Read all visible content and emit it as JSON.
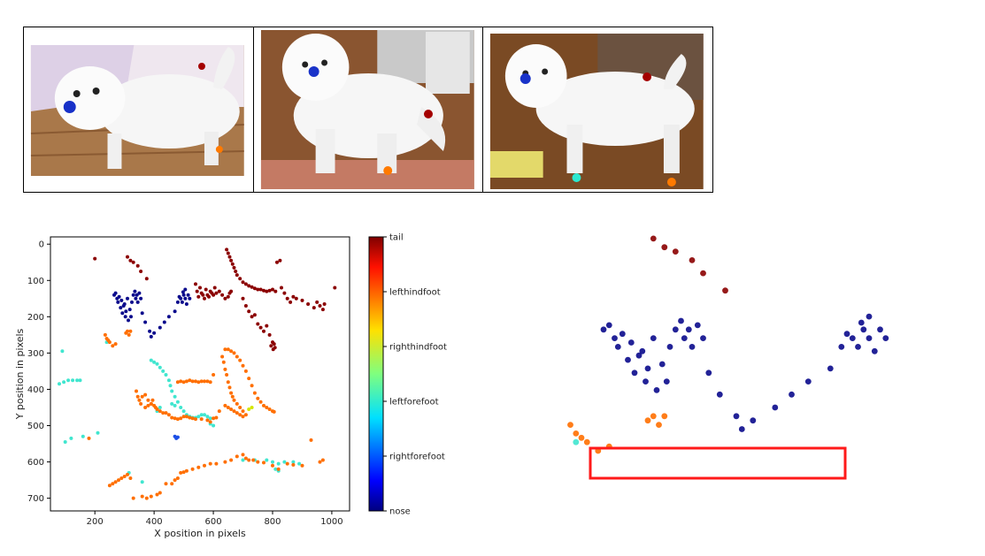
{
  "chart_data": {
    "type": "scatter",
    "xlabel": "X position in pixels",
    "ylabel": "Y position in pixels",
    "xlim": [
      50,
      1060
    ],
    "ylim": [
      735,
      -20
    ],
    "y_inverted": true,
    "xticks": [
      200,
      400,
      600,
      800,
      1000
    ],
    "yticks": [
      0,
      100,
      200,
      300,
      400,
      500,
      600,
      700
    ],
    "grid": false,
    "colorbar": {
      "labels": [
        "tail",
        "lefthindfoot",
        "righthindfoot",
        "leftforefoot",
        "rightforefoot",
        "nose"
      ],
      "colormap": "jet",
      "orientation": "vertical"
    },
    "series": [
      {
        "name": "nose",
        "color": "#0a0a8c",
        "points": [
          [
            265,
            140
          ],
          [
            270,
            135
          ],
          [
            275,
            150
          ],
          [
            278,
            160
          ],
          [
            282,
            145
          ],
          [
            287,
            175
          ],
          [
            290,
            155
          ],
          [
            293,
            190
          ],
          [
            297,
            170
          ],
          [
            300,
            165
          ],
          [
            303,
            200
          ],
          [
            305,
            185
          ],
          [
            310,
            150
          ],
          [
            313,
            210
          ],
          [
            318,
            180
          ],
          [
            322,
            200
          ],
          [
            325,
            160
          ],
          [
            330,
            140
          ],
          [
            335,
            130
          ],
          [
            338,
            150
          ],
          [
            342,
            140
          ],
          [
            345,
            160
          ],
          [
            350,
            135
          ],
          [
            355,
            150
          ],
          [
            360,
            190
          ],
          [
            370,
            215
          ],
          [
            385,
            240
          ],
          [
            390,
            255
          ],
          [
            400,
            245
          ],
          [
            420,
            230
          ],
          [
            435,
            215
          ],
          [
            450,
            200
          ],
          [
            470,
            185
          ],
          [
            480,
            160
          ],
          [
            485,
            145
          ],
          [
            490,
            150
          ],
          [
            495,
            160
          ],
          [
            500,
            140
          ],
          [
            505,
            150
          ],
          [
            510,
            165
          ],
          [
            515,
            140
          ],
          [
            520,
            150
          ],
          [
            505,
            125
          ],
          [
            498,
            132
          ]
        ]
      },
      {
        "name": "rightforefoot",
        "color": "#1c4fe6",
        "points": [
          [
            470,
            530
          ],
          [
            475,
            535
          ],
          [
            480,
            532
          ]
        ]
      },
      {
        "name": "leftforefoot",
        "color": "#40e6cf",
        "points": [
          [
            80,
            385
          ],
          [
            95,
            380
          ],
          [
            110,
            375
          ],
          [
            125,
            375
          ],
          [
            140,
            375
          ],
          [
            150,
            375
          ],
          [
            90,
            295
          ],
          [
            100,
            545
          ],
          [
            120,
            535
          ],
          [
            160,
            530
          ],
          [
            210,
            520
          ],
          [
            240,
            270
          ],
          [
            315,
            630
          ],
          [
            360,
            655
          ],
          [
            390,
            320
          ],
          [
            400,
            325
          ],
          [
            410,
            330
          ],
          [
            420,
            340
          ],
          [
            430,
            350
          ],
          [
            440,
            360
          ],
          [
            450,
            375
          ],
          [
            455,
            390
          ],
          [
            460,
            405
          ],
          [
            470,
            420
          ],
          [
            480,
            435
          ],
          [
            490,
            450
          ],
          [
            500,
            460
          ],
          [
            510,
            470
          ],
          [
            520,
            475
          ],
          [
            530,
            478
          ],
          [
            540,
            478
          ],
          [
            550,
            475
          ],
          [
            560,
            470
          ],
          [
            570,
            470
          ],
          [
            580,
            475
          ],
          [
            590,
            480
          ],
          [
            460,
            440
          ],
          [
            470,
            445
          ],
          [
            420,
            450
          ],
          [
            410,
            460
          ],
          [
            600,
            500
          ],
          [
            590,
            495
          ],
          [
            700,
            595
          ],
          [
            740,
            595
          ],
          [
            780,
            595
          ],
          [
            800,
            600
          ],
          [
            820,
            605
          ],
          [
            840,
            600
          ],
          [
            870,
            600
          ],
          [
            890,
            605
          ],
          [
            810,
            620
          ],
          [
            820,
            625
          ]
        ]
      },
      {
        "name": "righthindfoot",
        "color": "#d4e600",
        "points": [
          [
            720,
            455
          ],
          [
            730,
            450
          ]
        ]
      },
      {
        "name": "lefthindfoot",
        "color": "#ff6f00",
        "points": [
          [
            180,
            535
          ],
          [
            250,
            665
          ],
          [
            260,
            660
          ],
          [
            270,
            655
          ],
          [
            280,
            650
          ],
          [
            290,
            645
          ],
          [
            300,
            640
          ],
          [
            310,
            635
          ],
          [
            320,
            645
          ],
          [
            330,
            700
          ],
          [
            360,
            695
          ],
          [
            375,
            700
          ],
          [
            390,
            695
          ],
          [
            410,
            690
          ],
          [
            420,
            685
          ],
          [
            440,
            660
          ],
          [
            460,
            660
          ],
          [
            470,
            650
          ],
          [
            480,
            645
          ],
          [
            490,
            630
          ],
          [
            500,
            628
          ],
          [
            510,
            625
          ],
          [
            530,
            620
          ],
          [
            550,
            615
          ],
          [
            570,
            610
          ],
          [
            590,
            605
          ],
          [
            610,
            605
          ],
          [
            640,
            600
          ],
          [
            660,
            595
          ],
          [
            680,
            585
          ],
          [
            700,
            580
          ],
          [
            710,
            590
          ],
          [
            720,
            595
          ],
          [
            735,
            595
          ],
          [
            750,
            600
          ],
          [
            770,
            602
          ],
          [
            800,
            610
          ],
          [
            820,
            620
          ],
          [
            850,
            605
          ],
          [
            870,
            608
          ],
          [
            900,
            610
          ],
          [
            930,
            540
          ],
          [
            960,
            600
          ],
          [
            970,
            595
          ],
          [
            270,
            275
          ],
          [
            260,
            280
          ],
          [
            250,
            270
          ],
          [
            245,
            265
          ],
          [
            240,
            260
          ],
          [
            235,
            250
          ],
          [
            305,
            245
          ],
          [
            310,
            240
          ],
          [
            315,
            250
          ],
          [
            320,
            240
          ],
          [
            340,
            405
          ],
          [
            345,
            420
          ],
          [
            350,
            430
          ],
          [
            355,
            440
          ],
          [
            360,
            420
          ],
          [
            370,
            415
          ],
          [
            380,
            430
          ],
          [
            390,
            440
          ],
          [
            395,
            430
          ],
          [
            400,
            445
          ],
          [
            405,
            450
          ],
          [
            410,
            455
          ],
          [
            420,
            460
          ],
          [
            430,
            465
          ],
          [
            440,
            465
          ],
          [
            450,
            470
          ],
          [
            460,
            478
          ],
          [
            470,
            480
          ],
          [
            480,
            482
          ],
          [
            490,
            480
          ],
          [
            500,
            475
          ],
          [
            510,
            475
          ],
          [
            520,
            478
          ],
          [
            530,
            480
          ],
          [
            540,
            482
          ],
          [
            560,
            482
          ],
          [
            580,
            485
          ],
          [
            590,
            490
          ],
          [
            600,
            480
          ],
          [
            610,
            478
          ],
          [
            620,
            460
          ],
          [
            640,
            445
          ],
          [
            650,
            450
          ],
          [
            660,
            455
          ],
          [
            670,
            460
          ],
          [
            680,
            465
          ],
          [
            690,
            470
          ],
          [
            700,
            475
          ],
          [
            710,
            470
          ],
          [
            700,
            460
          ],
          [
            690,
            450
          ],
          [
            680,
            440
          ],
          [
            670,
            430
          ],
          [
            665,
            420
          ],
          [
            660,
            410
          ],
          [
            655,
            395
          ],
          [
            650,
            380
          ],
          [
            645,
            360
          ],
          [
            640,
            345
          ],
          [
            635,
            325
          ],
          [
            630,
            310
          ],
          [
            640,
            290
          ],
          [
            650,
            290
          ],
          [
            660,
            295
          ],
          [
            670,
            300
          ],
          [
            680,
            310
          ],
          [
            690,
            320
          ],
          [
            700,
            335
          ],
          [
            710,
            350
          ],
          [
            720,
            370
          ],
          [
            730,
            390
          ],
          [
            740,
            410
          ],
          [
            750,
            425
          ],
          [
            760,
            435
          ],
          [
            770,
            445
          ],
          [
            780,
            450
          ],
          [
            790,
            455
          ],
          [
            800,
            460
          ],
          [
            805,
            462
          ],
          [
            480,
            380
          ],
          [
            490,
            378
          ],
          [
            500,
            380
          ],
          [
            510,
            378
          ],
          [
            520,
            375
          ],
          [
            530,
            378
          ],
          [
            540,
            378
          ],
          [
            550,
            380
          ],
          [
            560,
            378
          ],
          [
            570,
            378
          ],
          [
            580,
            378
          ],
          [
            590,
            380
          ],
          [
            600,
            360
          ],
          [
            370,
            450
          ],
          [
            380,
            445
          ],
          [
            390,
            440
          ]
        ]
      },
      {
        "name": "tail",
        "color": "#8b0000",
        "points": [
          [
            200,
            40
          ],
          [
            310,
            35
          ],
          [
            320,
            45
          ],
          [
            330,
            50
          ],
          [
            345,
            60
          ],
          [
            355,
            75
          ],
          [
            375,
            95
          ],
          [
            540,
            110
          ],
          [
            545,
            130
          ],
          [
            550,
            145
          ],
          [
            555,
            120
          ],
          [
            560,
            135
          ],
          [
            565,
            140
          ],
          [
            570,
            150
          ],
          [
            575,
            125
          ],
          [
            580,
            140
          ],
          [
            585,
            145
          ],
          [
            590,
            130
          ],
          [
            595,
            135
          ],
          [
            600,
            140
          ],
          [
            605,
            120
          ],
          [
            610,
            135
          ],
          [
            620,
            130
          ],
          [
            630,
            140
          ],
          [
            640,
            150
          ],
          [
            650,
            145
          ],
          [
            655,
            135
          ],
          [
            660,
            130
          ],
          [
            645,
            15
          ],
          [
            650,
            25
          ],
          [
            655,
            35
          ],
          [
            660,
            45
          ],
          [
            665,
            55
          ],
          [
            670,
            65
          ],
          [
            675,
            75
          ],
          [
            680,
            85
          ],
          [
            690,
            95
          ],
          [
            700,
            105
          ],
          [
            710,
            110
          ],
          [
            720,
            115
          ],
          [
            730,
            118
          ],
          [
            740,
            122
          ],
          [
            750,
            125
          ],
          [
            760,
            125
          ],
          [
            770,
            128
          ],
          [
            780,
            130
          ],
          [
            790,
            128
          ],
          [
            800,
            125
          ],
          [
            810,
            130
          ],
          [
            815,
            50
          ],
          [
            825,
            45
          ],
          [
            830,
            120
          ],
          [
            840,
            135
          ],
          [
            850,
            150
          ],
          [
            860,
            160
          ],
          [
            870,
            145
          ],
          [
            880,
            150
          ],
          [
            900,
            155
          ],
          [
            920,
            165
          ],
          [
            940,
            175
          ],
          [
            950,
            160
          ],
          [
            960,
            170
          ],
          [
            970,
            180
          ],
          [
            975,
            165
          ],
          [
            1010,
            120
          ],
          [
            700,
            150
          ],
          [
            710,
            170
          ],
          [
            720,
            185
          ],
          [
            730,
            200
          ],
          [
            740,
            195
          ],
          [
            750,
            220
          ],
          [
            760,
            230
          ],
          [
            770,
            240
          ],
          [
            780,
            225
          ],
          [
            790,
            250
          ],
          [
            795,
            280
          ],
          [
            800,
            270
          ],
          [
            802,
            290
          ],
          [
            805,
            275
          ],
          [
            808,
            285
          ]
        ]
      }
    ]
  }
}
